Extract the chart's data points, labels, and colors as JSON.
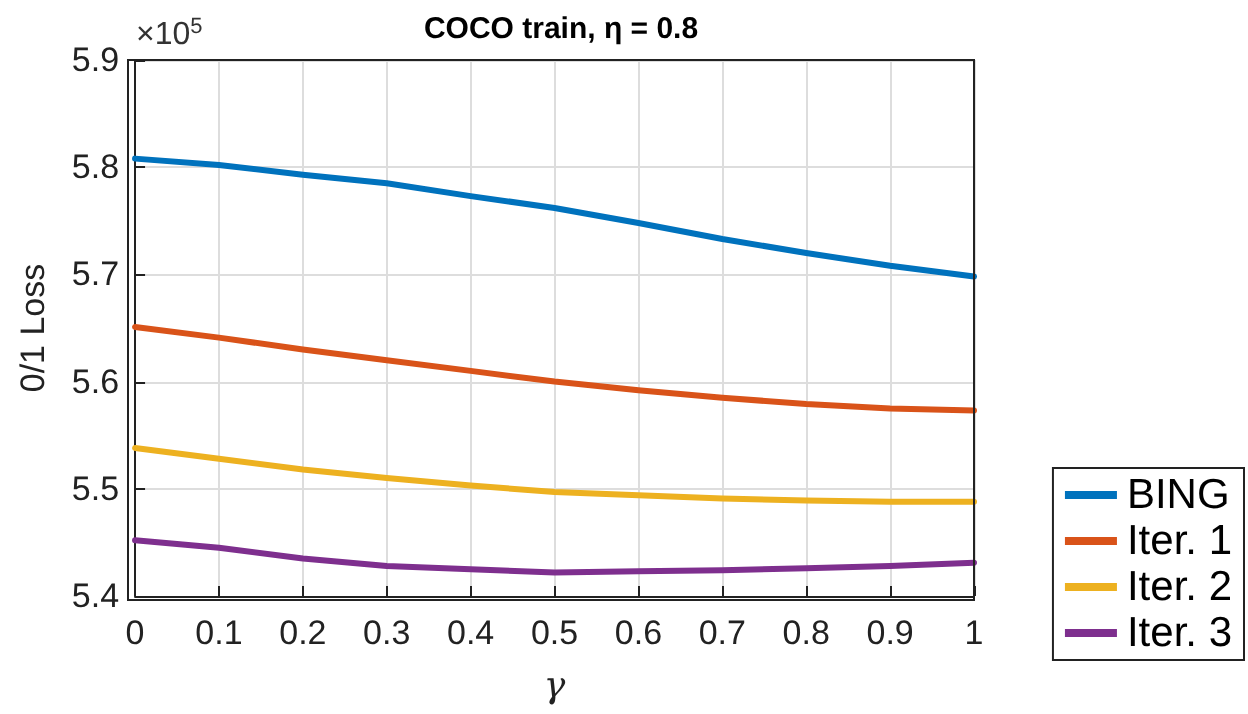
{
  "chart_data": {
    "type": "line",
    "title": "COCO train, η = 0.8",
    "xlabel": "γ",
    "ylabel": "0/1 Loss",
    "annotations": [
      "×10$^{5}$"
    ],
    "x": [
      0,
      0.1,
      0.2,
      0.3,
      0.4,
      0.5,
      0.6,
      0.7,
      0.8,
      0.9,
      1
    ],
    "series": [
      {
        "name": "BING",
        "color": "#0072bd",
        "values": [
          5.808,
          5.802,
          5.793,
          5.785,
          5.773,
          5.762,
          5.748,
          5.733,
          5.72,
          5.708,
          5.698
        ]
      },
      {
        "name": "Iter. 1",
        "color": "#d95319",
        "values": [
          5.651,
          5.641,
          5.63,
          5.62,
          5.61,
          5.6,
          5.592,
          5.585,
          5.579,
          5.575,
          5.573
        ]
      },
      {
        "name": "Iter. 2",
        "color": "#edb120",
        "values": [
          5.538,
          5.528,
          5.518,
          5.51,
          5.503,
          5.497,
          5.494,
          5.491,
          5.489,
          5.488,
          5.488
        ]
      },
      {
        "name": "Iter. 3",
        "color": "#7e2f8e",
        "values": [
          5.452,
          5.445,
          5.435,
          5.428,
          5.425,
          5.422,
          5.423,
          5.424,
          5.426,
          5.428,
          5.431
        ]
      }
    ],
    "xlim": [
      0,
      1
    ],
    "xticks": [
      0,
      0.1,
      0.2,
      0.3,
      0.4,
      0.5,
      0.6,
      0.7,
      0.8,
      0.9,
      1
    ],
    "ylim": [
      5.4,
      5.9
    ],
    "yticks": [
      5.4,
      5.5,
      5.6,
      5.7,
      5.8,
      5.9
    ],
    "grid": true,
    "legend": "right",
    "marker": "none",
    "line_style": "solid"
  }
}
